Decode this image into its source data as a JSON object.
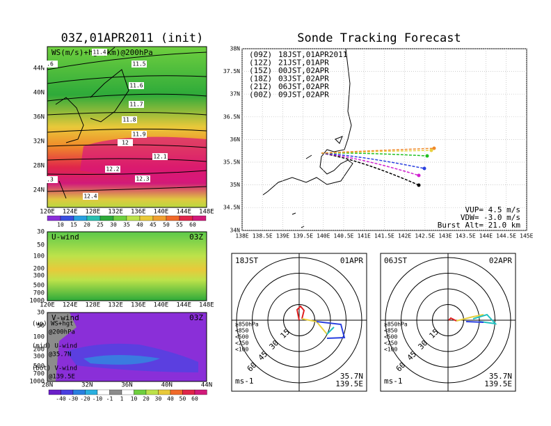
{
  "left": {
    "title": "03Z,01APR2011 (init)",
    "top_map": {
      "label": "WS(m/s)+hgt(km)@200hPa",
      "contour_labels": [
        "11.4",
        ".6",
        "11.5",
        "11.6",
        "11.7",
        "11.8",
        "11.9",
        "12",
        "12.1",
        "12.2",
        "12.3",
        ".3",
        "12.4"
      ],
      "yticks": [
        "44N",
        "40N",
        "36N",
        "32N",
        "28N",
        "24N"
      ],
      "xticks": [
        "120E",
        "124E",
        "128E",
        "132E",
        "136E",
        "140E",
        "144E",
        "148E"
      ]
    },
    "ws_colorbar": [
      "10",
      "15",
      "20",
      "25",
      "30",
      "35",
      "40",
      "45",
      "50",
      "55",
      "60"
    ],
    "u_panel": {
      "label": "U-wind",
      "time": "03Z",
      "yticks": [
        "30",
        "50",
        "100",
        "200",
        "300",
        "500",
        "700",
        "1000"
      ],
      "xticks": [
        "120E",
        "124E",
        "128E",
        "132E",
        "136E",
        "140E",
        "144E",
        "148E"
      ]
    },
    "v_panel": {
      "label": "V-wind",
      "time": "03Z",
      "yticks": [
        "30",
        "50",
        "100",
        "200",
        "300",
        "500",
        "700",
        "1000"
      ],
      "xticks": [
        "28N",
        "32N",
        "36N",
        "40N",
        "44N"
      ]
    },
    "notes": [
      [
        "(up) WS+hgt",
        "@200hPa"
      ],
      [
        "(mid) U-wind",
        "@35.7N"
      ],
      [
        "(bot) V-wind",
        "@139.5E"
      ]
    ],
    "v_colorbar": [
      "-40",
      "-30",
      "-20",
      "-10",
      "-1",
      "1",
      "10",
      "20",
      "30",
      "40",
      "50",
      "60"
    ]
  },
  "right": {
    "title": "Sonde Tracking Forecast",
    "track_map": {
      "yticks": [
        "38N",
        "37.5N",
        "37N",
        "36.5N",
        "36N",
        "35.5N",
        "35N",
        "34.5N",
        "34N"
      ],
      "xticks": [
        "138E",
        "138.5E",
        "139E",
        "139.5E",
        "140E",
        "140.5E",
        "141E",
        "141.5E",
        "142E",
        "142.5E",
        "143E",
        "143.5E",
        "144E",
        "144.5E",
        "145E"
      ],
      "legend": [
        [
          "(09Z)",
          "18JST,01APR2011"
        ],
        [
          "(12Z)",
          "21JST,01APR"
        ],
        [
          "(15Z)",
          "00JST,02APR"
        ],
        [
          "(18Z)",
          "03JST,02APR"
        ],
        [
          "(21Z)",
          "06JST,02APR"
        ],
        [
          "(00Z)",
          "09JST,02APR"
        ]
      ],
      "params": [
        "VUP= 4.5 m/s",
        "VDW= -3.0 m/s",
        "Burst Alt= 21.0 km"
      ]
    },
    "hodographs": [
      {
        "time": "18JST",
        "date": "01APR",
        "rings": [
          "15",
          "30",
          "45",
          "60"
        ],
        "levels": [
          "≥850hPa",
          "<850",
          "<500",
          "<250",
          "<100"
        ],
        "location": [
          "35.7N",
          "139.5E"
        ],
        "unit": "ms-1"
      },
      {
        "time": "06JST",
        "date": "02APR",
        "rings": [
          "15",
          "30",
          "45",
          "60"
        ],
        "levels": [
          "≥850hPa",
          "<850",
          "<500",
          "<250",
          "<100"
        ],
        "location": [
          "35.7N",
          "139.5E"
        ],
        "unit": "ms-1"
      }
    ]
  }
}
